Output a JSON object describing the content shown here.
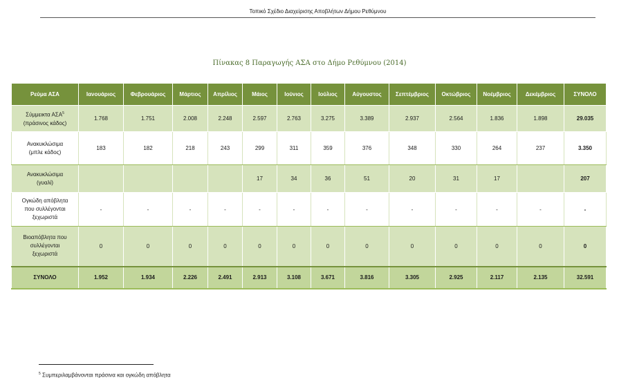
{
  "running_header": "Τοπικό Σχέδιο Διαχείρισης Αποβλήτων Δήμου Ρεθύμνου",
  "table_title": "Πίνακας 8 Παραγωγής ΑΣΑ στο Δήμο Ρεθύμνου (2014)",
  "columns": [
    "Ρεύμα ΑΣΑ",
    "Ιανουάριος",
    "Φεβρουάριος",
    "Μάρτιος",
    "Απρίλιος",
    "Μάιος",
    "Ιούνιος",
    "Ιούλιος",
    "Αύγουστος",
    "Σεπτέμβριος",
    "Οκτώβριος",
    "Νοέμβριος",
    "Δεκέμβριος",
    "ΣΥΝΟΛΟ"
  ],
  "rows": [
    {
      "label_line1": "Σύμμεικτα ΑΣΑ",
      "label_line2": "(πράσινος κάδος)",
      "label_sup": "5",
      "values": [
        "1.768",
        "1.751",
        "2.008",
        "2.248",
        "2.597",
        "2.763",
        "3.275",
        "3.389",
        "2.937",
        "2.564",
        "1.836",
        "1.898",
        "29.035"
      ]
    },
    {
      "label_line1": "Ανακυκλώσιμα",
      "label_line2": "(μπλε κάδος)",
      "values": [
        "183",
        "182",
        "218",
        "243",
        "299",
        "311",
        "359",
        "376",
        "348",
        "330",
        "264",
        "237",
        "3.350"
      ]
    },
    {
      "label_line1": "Ανακυκλώσιμα",
      "label_line2": "(γυαλί)",
      "values": [
        "",
        "",
        "",
        "",
        "17",
        "34",
        "36",
        "51",
        "20",
        "31",
        "17",
        "",
        "207"
      ]
    },
    {
      "label_line1": "Ογκώδη απόβλητα",
      "label_line2": "που συλλέγονται",
      "label_line3": "ξεχωριστά",
      "values": [
        "-",
        "-",
        "-",
        "-",
        "-",
        "-",
        "-",
        "-",
        "-",
        "-",
        "-",
        "-",
        "-"
      ]
    },
    {
      "label_line1": "Βιοαπόβλητα που",
      "label_line2": "συλλέγονται",
      "label_line3": "ξεχωριστά",
      "values": [
        "0",
        "0",
        "0",
        "0",
        "0",
        "0",
        "0",
        "0",
        "0",
        "0",
        "0",
        "0",
        "0"
      ]
    }
  ],
  "total_row": {
    "label": "ΣΥΝΟΛΟ",
    "values": [
      "1.952",
      "1.934",
      "2.226",
      "2.491",
      "2.913",
      "3.108",
      "3.671",
      "3.816",
      "3.305",
      "2.925",
      "2.117",
      "2.135",
      "32.591"
    ]
  },
  "footnote": {
    "marker": "5",
    "text": "Συμπεριλαμβάνονται πράσινα και ογκώδη απόβλητα"
  },
  "colors": {
    "header_bg": "#76923c",
    "shaded_row": "#d6e3bc",
    "total_row": "#c2d69b",
    "title": "#4a6b2a"
  }
}
